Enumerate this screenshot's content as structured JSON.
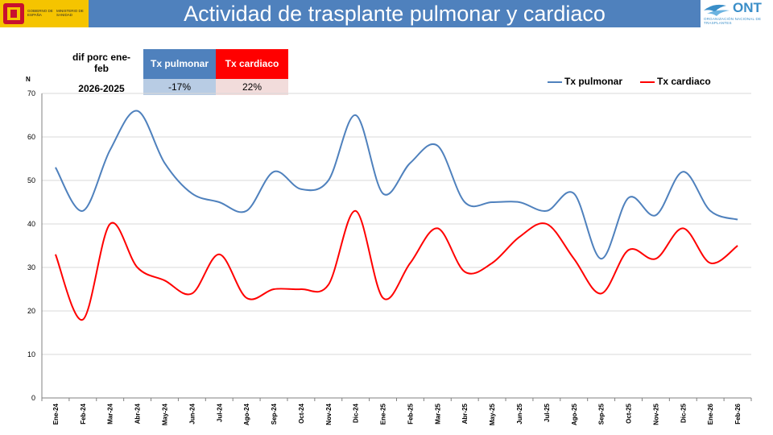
{
  "header": {
    "title": "Actividad de trasplante pulmonar y cardiaco",
    "gov_logo_text": "GOBIERNO DE ESPAÑA",
    "ministry_text": "MINISTERIO DE SANIDAD",
    "ont_logo": "ONT",
    "ont_subtitle": "ORGANIZACIÓN NACIONAL DE TRASPLANTES"
  },
  "diff_table": {
    "label": "dif porc ene-feb",
    "years": "2026-2025",
    "headers": [
      "Tx pulmonar",
      "Tx cardiaco"
    ],
    "values": [
      "-17%",
      "22%"
    ],
    "header_colors": [
      "#4f81bd",
      "#ff0000"
    ],
    "value_colors": [
      "#b8cce4",
      "#f2dcdb"
    ]
  },
  "chart_data": {
    "type": "line",
    "ylabel": "N",
    "ylim": [
      0,
      70
    ],
    "yticks": [
      0,
      10,
      20,
      30,
      40,
      50,
      60,
      70
    ],
    "grid": true,
    "legend_position": "top-right",
    "categories": [
      "Ene-24",
      "Feb-24",
      "Mar-24",
      "Abr-24",
      "May-24",
      "Jun-24",
      "Jul-24",
      "Ago-24",
      "Sep-24",
      "Oct-24",
      "Nov-24",
      "Dic-24",
      "Ene-25",
      "Feb-25",
      "Mar-25",
      "Abr-25",
      "May-25",
      "Jun-25",
      "Jul-25",
      "Ago-25",
      "Sep-25",
      "Oct-25",
      "Nov-25",
      "Dic-25",
      "Ene-26",
      "Feb-26"
    ],
    "series": [
      {
        "name": "Tx pulmonar",
        "color": "#4f81bd",
        "values": [
          53,
          43,
          57,
          66,
          54,
          47,
          45,
          43,
          52,
          48,
          50,
          65,
          47,
          54,
          58,
          45,
          45,
          45,
          43,
          47,
          32,
          46,
          42,
          52,
          43,
          41
        ]
      },
      {
        "name": "Tx cardiaco",
        "color": "#ff0000",
        "values": [
          33,
          18,
          40,
          30,
          27,
          24,
          33,
          23,
          25,
          25,
          26,
          43,
          23,
          31,
          39,
          29,
          31,
          37,
          40,
          32,
          24,
          34,
          32,
          39,
          31,
          35
        ]
      }
    ]
  }
}
